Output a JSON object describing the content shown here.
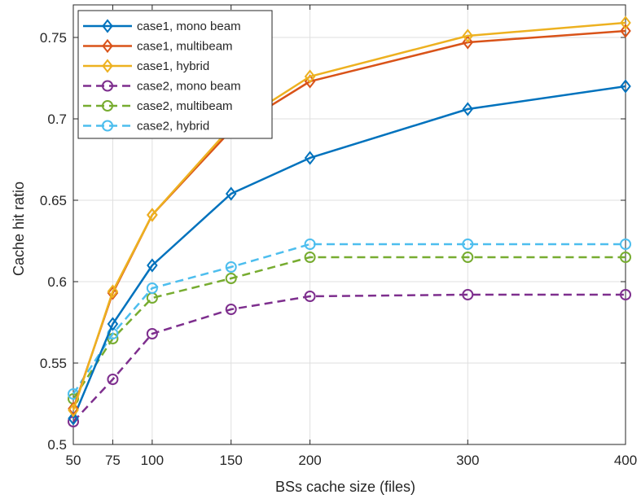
{
  "chart_data": {
    "type": "line",
    "title": "",
    "xlabel": "BSs cache size (files)",
    "ylabel": "Cache hit ratio",
    "xlim": [
      50,
      400
    ],
    "ylim": [
      0.5,
      0.77
    ],
    "x_ticks": [
      50,
      75,
      100,
      150,
      200,
      300,
      400
    ],
    "x_tick_labels": [
      "50",
      "75",
      "100",
      "150",
      "200",
      "300",
      "400"
    ],
    "y_ticks": [
      0.5,
      0.55,
      0.6,
      0.65,
      0.7,
      0.75
    ],
    "y_tick_labels": [
      "0.5",
      "0.55",
      "0.6",
      "0.65",
      "0.7",
      "0.75"
    ],
    "grid": true,
    "legend_position": "top-left",
    "x": [
      50,
      75,
      100,
      150,
      200,
      300,
      400
    ],
    "series": [
      {
        "name": "case1, mono beam",
        "color": "#0072BD",
        "line": "solid",
        "marker": "diamond",
        "values": [
          0.516,
          0.574,
          0.61,
          0.654,
          0.676,
          0.706,
          0.72
        ]
      },
      {
        "name": "case1, multibeam",
        "color": "#D95319",
        "line": "solid",
        "marker": "diamond",
        "values": [
          0.522,
          0.593,
          0.641,
          0.693,
          0.723,
          0.747,
          0.754
        ]
      },
      {
        "name": "case1, hybrid",
        "color": "#EDB120",
        "line": "solid",
        "marker": "diamond",
        "values": [
          0.521,
          0.594,
          0.641,
          0.695,
          0.726,
          0.751,
          0.759
        ]
      },
      {
        "name": "case2, mono beam",
        "color": "#7E2F8E",
        "line": "dashed",
        "marker": "circle",
        "values": [
          0.514,
          0.54,
          0.568,
          0.583,
          0.591,
          0.592,
          0.592
        ]
      },
      {
        "name": "case2, multibeam",
        "color": "#77AC30",
        "line": "dashed",
        "marker": "circle",
        "values": [
          0.528,
          0.565,
          0.59,
          0.602,
          0.615,
          0.615,
          0.615
        ]
      },
      {
        "name": "case2, hybrid",
        "color": "#4DBEEE",
        "line": "dashed",
        "marker": "circle",
        "values": [
          0.531,
          0.568,
          0.596,
          0.609,
          0.623,
          0.623,
          0.623
        ]
      }
    ]
  }
}
